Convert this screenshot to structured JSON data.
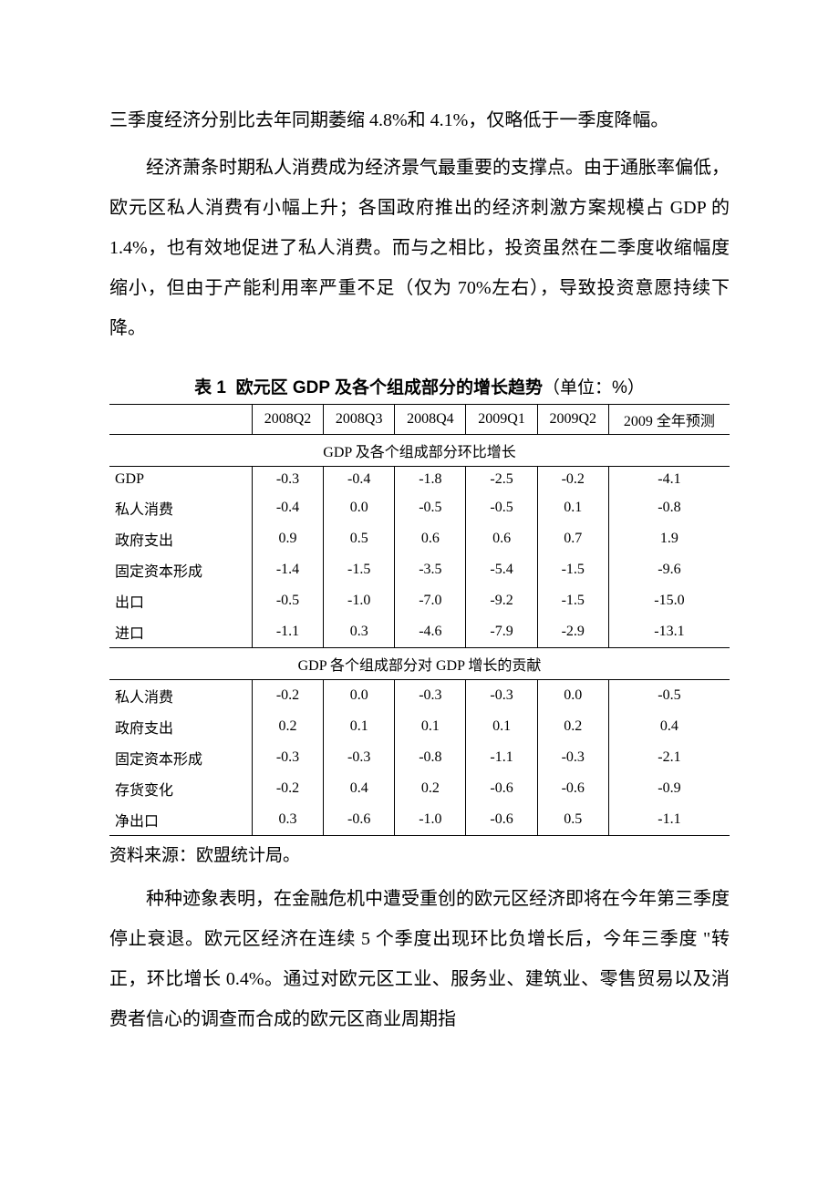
{
  "paragraphs": {
    "p1": "三季度经济分别比去年同期萎缩 4.8%和 4.1%，仅略低于一季度降幅。",
    "p2": "经济萧条时期私人消费成为经济景气最重要的支撑点。由于通胀率偏低，欧元区私人消费有小幅上升；各国政府推出的经济刺激方案规模占 GDP 的 1.4%，也有效地促进了私人消费。而与之相比，投资虽然在二季度收缩幅度缩小，但由于产能利用率严重不足（仅为 70%左右），导致投资意愿持续下降。",
    "p3": "种种迹象表明，在金融危机中遭受重创的欧元区经济即将在今年第三季度停止衰退。欧元区经济在连续 5 个季度出现环比负增长后，今年三季度 \"转正，环比增长 0.4%。通过对欧元区工业、服务业、建筑业、零售贸易以及消费者信心的调查而合成的欧元区商业周期指"
  },
  "table": {
    "title_prefix": "表 1",
    "title_main": "欧元区 GDP 及各个组成部分的增长趋势",
    "title_unit": "（单位：%）",
    "columns": [
      "2008Q2",
      "2008Q3",
      "2008Q4",
      "2009Q1",
      "2009Q2",
      "2009 全年预测"
    ],
    "section1_header": "GDP 及各个组成部分环比增长",
    "section1_rows": [
      {
        "label": "GDP",
        "vals": [
          "-0.3",
          "-0.4",
          "-1.8",
          "-2.5",
          "-0.2",
          "-4.1"
        ]
      },
      {
        "label": "私人消费",
        "vals": [
          "-0.4",
          "0.0",
          "-0.5",
          "-0.5",
          "0.1",
          "-0.8"
        ]
      },
      {
        "label": "政府支出",
        "vals": [
          "0.9",
          "0.5",
          "0.6",
          "0.6",
          "0.7",
          "1.9"
        ]
      },
      {
        "label": "固定资本形成",
        "vals": [
          "-1.4",
          "-1.5",
          "-3.5",
          "-5.4",
          "-1.5",
          "-9.6"
        ]
      },
      {
        "label": "出口",
        "vals": [
          "-0.5",
          "-1.0",
          "-7.0",
          "-9.2",
          "-1.5",
          "-15.0"
        ]
      },
      {
        "label": "进口",
        "vals": [
          "-1.1",
          "0.3",
          "-4.6",
          "-7.9",
          "-2.9",
          "-13.1"
        ]
      }
    ],
    "section2_header": "GDP 各个组成部分对 GDP 增长的贡献",
    "section2_rows": [
      {
        "label": "私人消费",
        "vals": [
          "-0.2",
          "0.0",
          "-0.3",
          "-0.3",
          "0.0",
          "-0.5"
        ]
      },
      {
        "label": "政府支出",
        "vals": [
          "0.2",
          "0.1",
          "0.1",
          "0.1",
          "0.2",
          "0.4"
        ]
      },
      {
        "label": "固定资本形成",
        "vals": [
          "-0.3",
          "-0.3",
          "-0.8",
          "-1.1",
          "-0.3",
          "-2.1"
        ]
      },
      {
        "label": "存货变化",
        "vals": [
          "-0.2",
          "0.4",
          "0.2",
          "-0.6",
          "-0.6",
          "-0.9"
        ]
      },
      {
        "label": "净出口",
        "vals": [
          "0.3",
          "-0.6",
          "-1.0",
          "-0.6",
          "0.5",
          "-1.1"
        ]
      }
    ]
  },
  "source": "资料来源：欧盟统计局。",
  "col_widths": {
    "label": "23%",
    "data": "11.5%",
    "last": "19.5%"
  }
}
